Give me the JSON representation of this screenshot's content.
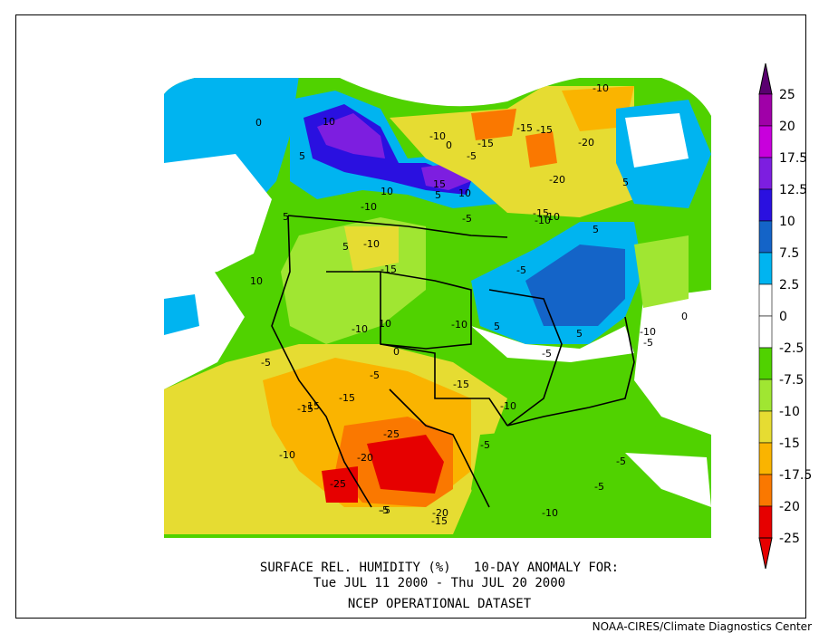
{
  "map": {
    "title_line1": "SURFACE REL. HUMIDITY (%)   10-DAY ANOMALY FOR:",
    "title_line2": "Tue JUL 11 2000 - Thu JUL 20 2000",
    "dataset": "NCEP OPERATIONAL DATASET",
    "credit": "NOAA-CIRES/Climate Diagnostics Center",
    "variable": "Surface relative humidity anomaly",
    "units": "%",
    "region": "North America",
    "colorbar": [
      {
        "label": "25",
        "color": "#5a0070"
      },
      {
        "label": "20",
        "color": "#a000a8"
      },
      {
        "label": "17.5",
        "color": "#c800dc"
      },
      {
        "label": "12.5",
        "color": "#7d1ee0"
      },
      {
        "label": "10",
        "color": "#2a10e0"
      },
      {
        "label": "7.5",
        "color": "#1464c8"
      },
      {
        "label": "2.5",
        "color": "#00b4f0"
      },
      {
        "label": "0",
        "color": "#ffffff"
      },
      {
        "label": "-2.5",
        "color": "#ffffff"
      },
      {
        "label": "-7.5",
        "color": "#50d200"
      },
      {
        "label": "-10",
        "color": "#a0e632"
      },
      {
        "label": "-15",
        "color": "#e6dc32"
      },
      {
        "label": "-17.5",
        "color": "#fab400"
      },
      {
        "label": "-20",
        "color": "#fa7800"
      },
      {
        "label": "-25",
        "color": "#e60000"
      }
    ],
    "contour_labels": [
      "10",
      "5",
      "10",
      "15",
      "5",
      "10",
      "-10",
      "-15",
      "-5",
      "-15",
      "-20",
      "-15",
      "-10",
      "0",
      "-20",
      "-15",
      "-10",
      "-5",
      "10",
      "5",
      "10",
      "0",
      "5",
      "-10",
      "-5",
      "5",
      "-5",
      "-10",
      "-15",
      "-10",
      "-5",
      "-15",
      "-25",
      "-20",
      "-15",
      "-25",
      "-10",
      "-5",
      "-10",
      "-5",
      "-20",
      "-15",
      "-5",
      "-10",
      "5",
      "-5",
      "5",
      "0",
      "-5",
      "0",
      "-5",
      "10",
      "-10",
      "-15",
      "-10",
      "-5",
      "-15",
      "-10"
    ]
  }
}
